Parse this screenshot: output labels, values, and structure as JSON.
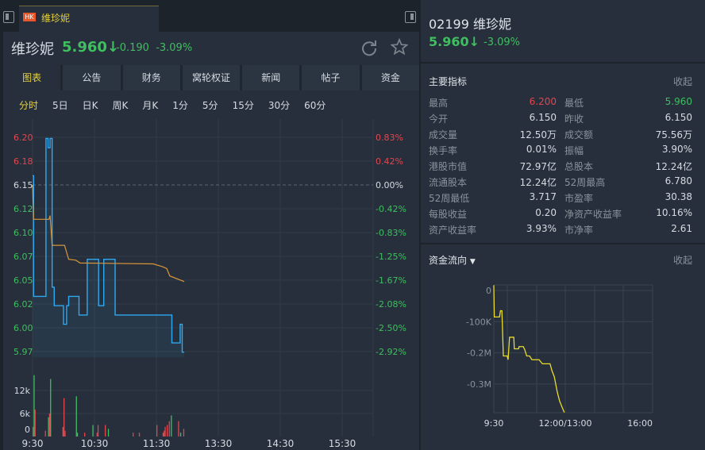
{
  "tab": {
    "market_badge": "HK",
    "name": "维珍妮"
  },
  "header": {
    "name": "维珍妮",
    "price": "5.960↓",
    "change": "-0.190",
    "change_pct": "-3.09%"
  },
  "tabs": [
    {
      "label": "图表",
      "selected": true
    },
    {
      "label": "公告"
    },
    {
      "label": "财务"
    },
    {
      "label": "窝轮权证"
    },
    {
      "label": "新闻"
    },
    {
      "label": "帖子"
    },
    {
      "label": "资金"
    }
  ],
  "periods": [
    {
      "label": "分时",
      "selected": true
    },
    {
      "label": "5日"
    },
    {
      "label": "日K"
    },
    {
      "label": "周K"
    },
    {
      "label": "月K"
    },
    {
      "label": "1分"
    },
    {
      "label": "5分"
    },
    {
      "label": "15分"
    },
    {
      "label": "30分"
    },
    {
      "label": "60分"
    }
  ],
  "colors": {
    "up": "#e0474f",
    "down": "#3fbf60",
    "price_line": "#2ea8f0",
    "avg_line": "#d9963a",
    "flow_line": "#e8dc2a",
    "accent": "#e6d23a"
  },
  "right": {
    "code_name": "02199 维珍妮",
    "price": "5.960↓",
    "change_pct": "-3.09%",
    "indicators_title": "主要指标",
    "collapse": "收起",
    "indicators": [
      [
        "最高",
        "6.200",
        "最低",
        "5.960"
      ],
      [
        "今开",
        "6.150",
        "昨收",
        "6.150"
      ],
      [
        "成交量",
        "12.50万",
        "成交额",
        "75.56万"
      ],
      [
        "换手率",
        "0.01%",
        "振幅",
        "3.90%"
      ],
      [
        "港股市值",
        "72.97亿",
        "总股本",
        "12.24亿"
      ],
      [
        "流通股本",
        "12.24亿",
        "52周最高",
        "6.780"
      ],
      [
        "52周最低",
        "3.717",
        "市盈率",
        "30.38"
      ],
      [
        "每股收益",
        "0.20",
        "净资产收益率",
        "10.16%"
      ],
      [
        "资产收益率",
        "3.93%",
        "市净率",
        "2.61"
      ]
    ],
    "flow_title": "资金流向",
    "flow_collapse": "收起"
  },
  "chart_data": [
    {
      "type": "line",
      "prev_close": 6.15,
      "y_ticks": [
        "6.20",
        "6.18",
        "6.15",
        "6.12",
        "6.10",
        "6.07",
        "6.05",
        "6.02",
        "6.00",
        "5.97"
      ],
      "y_pct_ticks": [
        "0.83%",
        "0.42%",
        "0.00%",
        "-0.42%",
        "-0.83%",
        "-1.25%",
        "-1.67%",
        "-2.08%",
        "-2.50%",
        "-2.92%"
      ],
      "x_ticks": [
        "9:30",
        "10:30",
        "11:30",
        "13:30",
        "14:30",
        "15:30"
      ],
      "price": [
        [
          "9:30",
          6.16
        ],
        [
          "9:31",
          6.03
        ],
        [
          "9:42",
          6.03
        ],
        [
          "9:43",
          6.2
        ],
        [
          "9:45",
          6.19
        ],
        [
          "9:47",
          6.2
        ],
        [
          "9:49",
          6.04
        ],
        [
          "9:51",
          6.02
        ],
        [
          "9:58",
          6.02
        ],
        [
          "10:00",
          6.0
        ],
        [
          "10:01",
          6.0
        ],
        [
          "10:03",
          6.02
        ],
        [
          "10:05",
          6.03
        ],
        [
          "10:12",
          6.03
        ],
        [
          "10:15",
          6.01
        ],
        [
          "10:22",
          6.01
        ],
        [
          "10:23",
          6.07
        ],
        [
          "10:33",
          6.07
        ],
        [
          "10:34",
          6.02
        ],
        [
          "10:38",
          6.02
        ],
        [
          "10:39",
          6.07
        ],
        [
          "10:49",
          6.07
        ],
        [
          "10:50",
          6.01
        ],
        [
          "11:44",
          6.01
        ],
        [
          "11:45",
          5.98
        ],
        [
          "11:52",
          5.98
        ],
        [
          "11:53",
          6.0
        ],
        [
          "11:55",
          5.97
        ],
        [
          "11:57",
          5.97
        ]
      ],
      "average": [
        [
          "9:30",
          6.15
        ],
        [
          "9:31",
          6.113
        ],
        [
          "9:46",
          6.113
        ],
        [
          "9:47",
          6.117
        ],
        [
          "9:49",
          6.085
        ],
        [
          "10:01",
          6.085
        ],
        [
          "10:05",
          6.07
        ],
        [
          "10:12",
          6.069
        ],
        [
          "10:16",
          6.066
        ],
        [
          "11:27",
          6.065
        ],
        [
          "11:36",
          6.062
        ],
        [
          "11:40",
          6.06
        ],
        [
          "11:43",
          6.052
        ],
        [
          "11:57",
          6.046
        ]
      ],
      "volume_ticks": [
        "12k",
        "6k",
        "0"
      ],
      "volume": [
        [
          "9:30",
          2.5,
          "up"
        ],
        [
          "9:31",
          16,
          "down"
        ],
        [
          "9:32",
          7,
          "up"
        ],
        [
          "9:42",
          1.5,
          "up"
        ],
        [
          "9:45",
          5,
          "down"
        ],
        [
          "9:46",
          6,
          "up"
        ],
        [
          "9:47",
          15,
          "down"
        ],
        [
          "9:59",
          2.5,
          "up"
        ],
        [
          "10:00",
          10,
          "up"
        ],
        [
          "10:01",
          1.5,
          "up"
        ],
        [
          "10:12",
          10.5,
          "down"
        ],
        [
          "10:13",
          1,
          "down"
        ],
        [
          "10:20",
          1,
          "up"
        ],
        [
          "10:28",
          3,
          "down"
        ],
        [
          "10:32",
          1,
          "up"
        ],
        [
          "10:33",
          3,
          "up"
        ],
        [
          "10:40",
          3,
          "up"
        ],
        [
          "10:43",
          2,
          "down"
        ],
        [
          "11:07",
          1,
          "up"
        ],
        [
          "11:13",
          1,
          "up"
        ],
        [
          "11:30",
          3,
          "up"
        ],
        [
          "11:36",
          1,
          "up"
        ],
        [
          "11:37",
          1.5,
          "up"
        ],
        [
          "11:38",
          2.5,
          "up"
        ],
        [
          "11:40",
          3,
          "up"
        ],
        [
          "11:42",
          4,
          "up"
        ],
        [
          "11:44",
          5.5,
          "down"
        ],
        [
          "11:51",
          4,
          "up"
        ],
        [
          "11:53",
          1,
          "down"
        ],
        [
          "11:56",
          2,
          "up"
        ]
      ]
    },
    {
      "type": "line",
      "y_ticks": [
        "0",
        "-100K",
        "-0.2M",
        "-0.3M"
      ],
      "x_ticks": [
        "9:30",
        "12:00/13:00",
        "16:00"
      ],
      "flow": [
        [
          "9:30",
          17
        ],
        [
          "9:31",
          -85
        ],
        [
          "9:42",
          -85
        ],
        [
          "9:44",
          -65
        ],
        [
          "9:47",
          -65
        ],
        [
          "9:50",
          -210
        ],
        [
          "9:58",
          -210
        ],
        [
          "10:00",
          -222
        ],
        [
          "10:03",
          -150
        ],
        [
          "10:12",
          -150
        ],
        [
          "10:13",
          -187
        ],
        [
          "10:22",
          -187
        ],
        [
          "10:23",
          -180
        ],
        [
          "10:32",
          -180
        ],
        [
          "10:35",
          -190
        ],
        [
          "10:39",
          -210
        ],
        [
          "10:45",
          -210
        ],
        [
          "10:50",
          -222
        ],
        [
          "11:05",
          -222
        ],
        [
          "11:12",
          -235
        ],
        [
          "11:28",
          -235
        ],
        [
          "11:32",
          -257
        ],
        [
          "11:37",
          -277
        ],
        [
          "11:43",
          -324
        ],
        [
          "11:48",
          -354
        ],
        [
          "11:53",
          -373
        ],
        [
          "11:58",
          -391
        ]
      ]
    }
  ]
}
